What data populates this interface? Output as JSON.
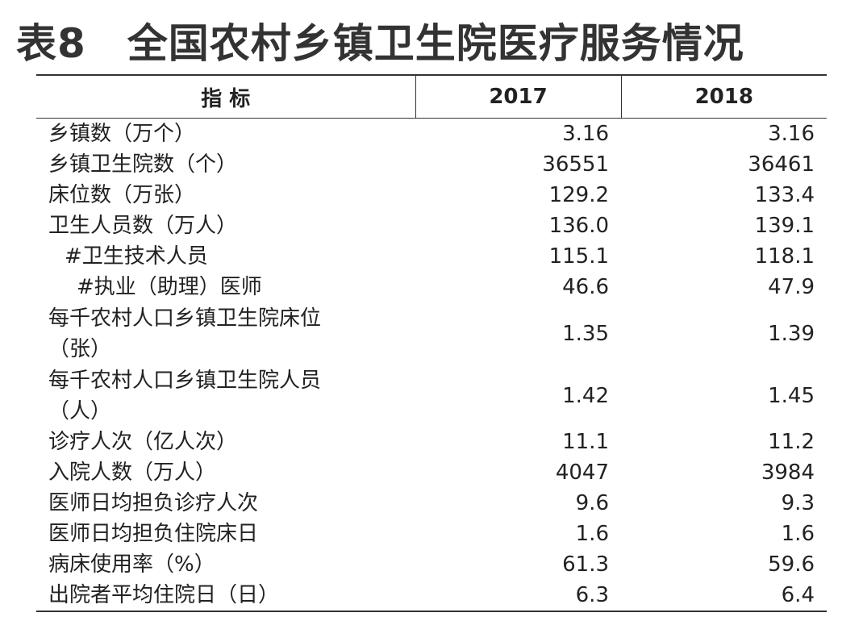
{
  "header": {
    "title": "表8　全国农村乡镇卫生院医疗服务情况"
  },
  "table": {
    "columns": [
      "指 标",
      "2017",
      "2018"
    ],
    "rows": [
      [
        "乡镇数（万个）",
        "3.16",
        "3.16"
      ],
      [
        "乡镇卫生院数（个）",
        "36551",
        "36461"
      ],
      [
        "床位数（万张）",
        "129.2",
        "133.4"
      ],
      [
        "卫生人员数（万人）",
        "136.0",
        "139.1"
      ],
      [
        "#卫生技术人员",
        "115.1",
        "118.1"
      ],
      [
        "#执业（助理）医师",
        "46.6",
        "47.9"
      ],
      [
        "每千农村人口乡镇卫生院床位（张）",
        "1.35",
        "1.39"
      ],
      [
        "每千农村人口乡镇卫生院人员（人）",
        "1.42",
        "1.45"
      ],
      [
        "诊疗人次（亿人次）",
        "11.1",
        "11.2"
      ],
      [
        "入院人数（万人）",
        "4047",
        "3984"
      ],
      [
        "医师日均担负诊疗人次",
        "9.6",
        "9.3"
      ],
      [
        "医师日均担负住院床日",
        "1.6",
        "1.6"
      ],
      [
        "病床使用率（%）",
        "61.3",
        "59.6"
      ],
      [
        "出院者平均住院日（日）",
        "6.3",
        "6.4"
      ]
    ]
  }
}
